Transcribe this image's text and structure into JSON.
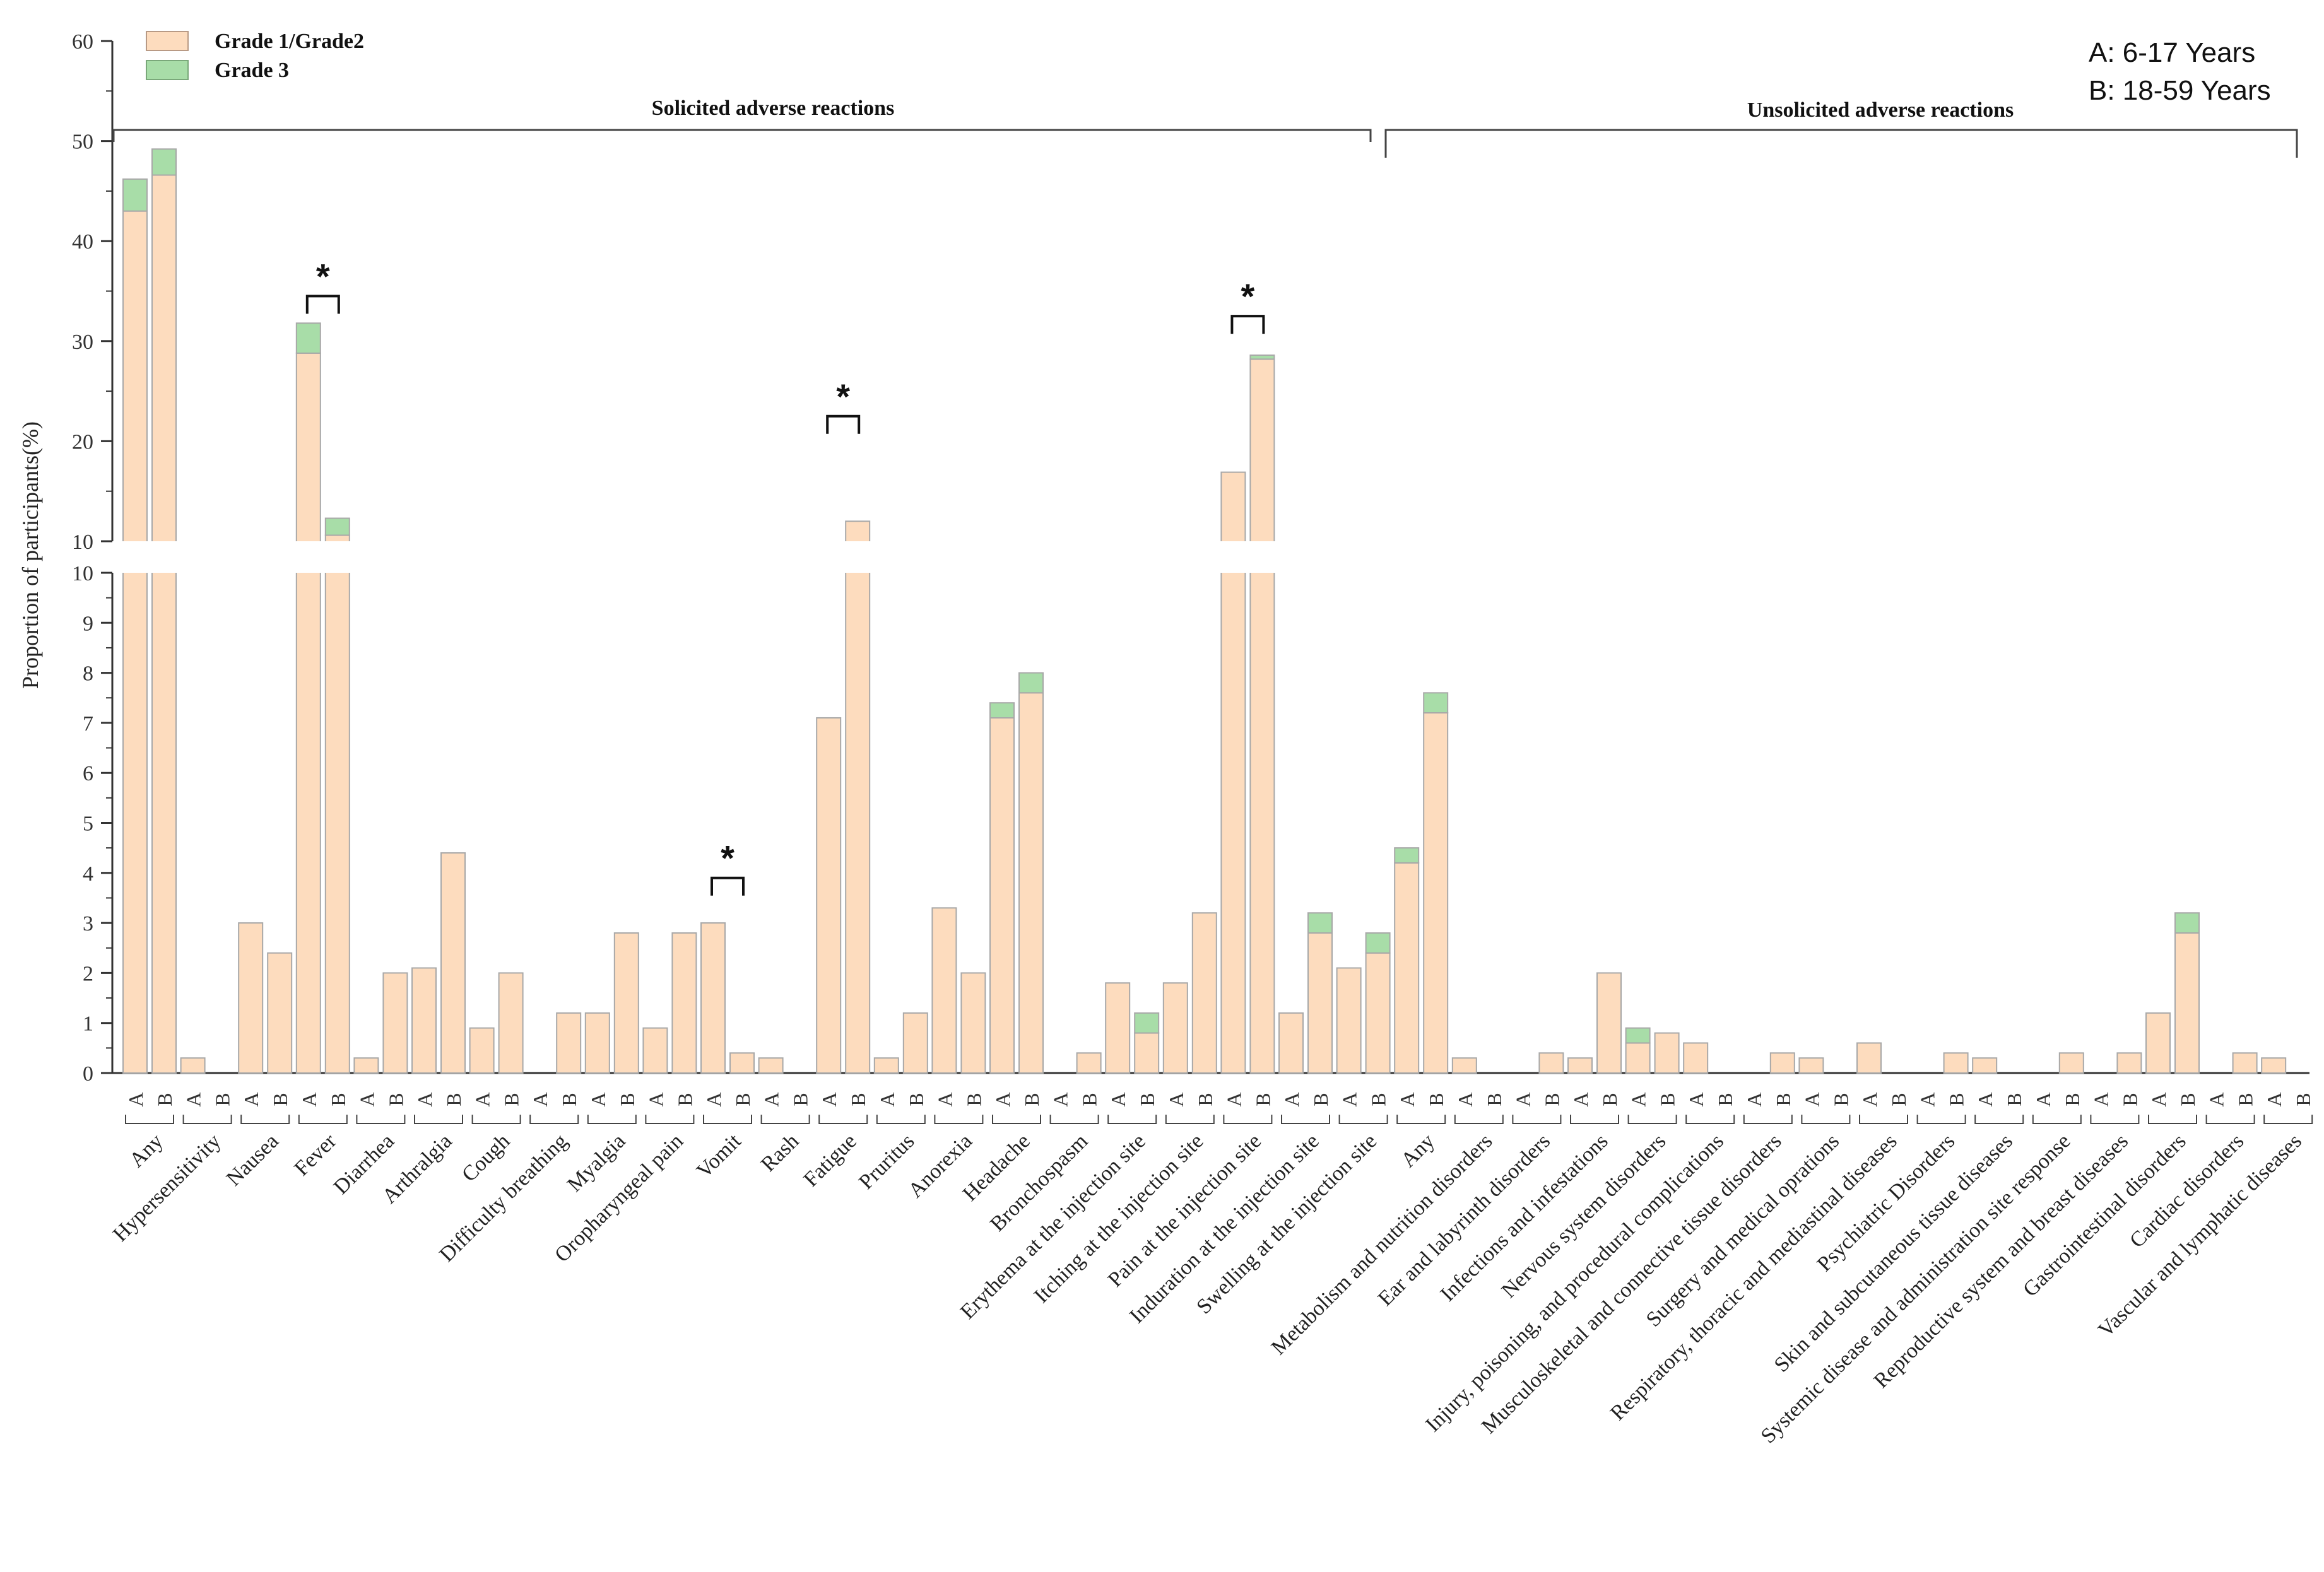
{
  "chart_data": {
    "type": "bar",
    "stacked": true,
    "broken_y_axis": true,
    "ylabel": "Proportion of participants(%)",
    "lower_ticks": [
      "0",
      "1",
      "2",
      "3",
      "4",
      "5",
      "6",
      "7",
      "8",
      "9",
      "10"
    ],
    "upper_ticks": [
      "10",
      "20",
      "30",
      "40",
      "50",
      "60"
    ],
    "lower_ylim": [
      0,
      10
    ],
    "upper_ylim": [
      10,
      60
    ],
    "legend": [
      {
        "name": "Grade 1/Grade2",
        "color": "#FDDCBE"
      },
      {
        "name": "Grade 3",
        "color": "#A8DDA8"
      }
    ],
    "age_groups": {
      "A": "A: 6-17 Years",
      "B": "B: 18-59 Years"
    },
    "groups": {
      "solicited": "Solicited adverse reactions",
      "unsolicited": "Unsolicited adverse reactions"
    },
    "significance_marker": "*",
    "categories": [
      {
        "name": "Any",
        "group": "solicited",
        "A": [
          43.0,
          3.2
        ],
        "B": [
          46.6,
          2.6
        ]
      },
      {
        "name": "Hypersensitivity",
        "group": "solicited",
        "A": [
          0.3,
          0
        ],
        "B": [
          0,
          0
        ]
      },
      {
        "name": "Nausea",
        "group": "solicited",
        "A": [
          3.0,
          0
        ],
        "B": [
          2.4,
          0
        ]
      },
      {
        "name": "Fever",
        "group": "solicited",
        "A": [
          28.8,
          3.0
        ],
        "B": [
          10.6,
          1.7
        ],
        "sig": true
      },
      {
        "name": "Diarrhea",
        "group": "solicited",
        "A": [
          0.3,
          0
        ],
        "B": [
          2.0,
          0
        ]
      },
      {
        "name": "Arthralgia",
        "group": "solicited",
        "A": [
          2.1,
          0
        ],
        "B": [
          4.4,
          0
        ]
      },
      {
        "name": "Cough",
        "group": "solicited",
        "A": [
          0.9,
          0
        ],
        "B": [
          2.0,
          0
        ]
      },
      {
        "name": "Difficulty breathing",
        "group": "solicited",
        "A": [
          0,
          0
        ],
        "B": [
          1.2,
          0
        ]
      },
      {
        "name": "Myalgia",
        "group": "solicited",
        "A": [
          1.2,
          0
        ],
        "B": [
          2.8,
          0
        ]
      },
      {
        "name": "Oropharyngeal pain",
        "group": "solicited",
        "A": [
          0.9,
          0
        ],
        "B": [
          2.8,
          0
        ]
      },
      {
        "name": "Vomit",
        "group": "solicited",
        "A": [
          3.0,
          0
        ],
        "B": [
          0.4,
          0
        ],
        "sig": true
      },
      {
        "name": "Rash",
        "group": "solicited",
        "A": [
          0.3,
          0
        ],
        "B": [
          0,
          0
        ]
      },
      {
        "name": "Fatigue",
        "group": "solicited",
        "A": [
          7.1,
          0
        ],
        "B": [
          12.0,
          0
        ],
        "sig": true
      },
      {
        "name": "Pruritus",
        "group": "solicited",
        "A": [
          0.3,
          0
        ],
        "B": [
          1.2,
          0
        ]
      },
      {
        "name": "Anorexia",
        "group": "solicited",
        "A": [
          3.3,
          0
        ],
        "B": [
          2.0,
          0
        ]
      },
      {
        "name": "Headache",
        "group": "solicited",
        "A": [
          7.1,
          0.3
        ],
        "B": [
          7.6,
          0.4
        ]
      },
      {
        "name": "Bronchospasm",
        "group": "solicited",
        "A": [
          0,
          0
        ],
        "B": [
          0.4,
          0
        ]
      },
      {
        "name": "Erythema at the injection site",
        "group": "solicited",
        "A": [
          1.8,
          0
        ],
        "B": [
          0.8,
          0.4
        ]
      },
      {
        "name": "Itching at the injection site",
        "group": "solicited",
        "A": [
          1.8,
          0
        ],
        "B": [
          3.2,
          0
        ]
      },
      {
        "name": "Pain at the injection site",
        "group": "solicited",
        "A": [
          16.9,
          0
        ],
        "B": [
          28.2,
          0.4
        ],
        "sig": true
      },
      {
        "name": "Induration at the injection site",
        "group": "solicited",
        "A": [
          1.2,
          0
        ],
        "B": [
          2.8,
          0.4
        ]
      },
      {
        "name": "Swelling at the injection site",
        "group": "solicited",
        "A": [
          2.1,
          0
        ],
        "B": [
          2.4,
          0.4
        ]
      },
      {
        "name": "Any",
        "group": "unsolicited",
        "A": [
          4.2,
          0.3
        ],
        "B": [
          7.2,
          0.4
        ]
      },
      {
        "name": "Metabolism and nutrition disorders",
        "group": "unsolicited",
        "A": [
          0.3,
          0
        ],
        "B": [
          0,
          0
        ]
      },
      {
        "name": "Ear and labyrinth disorders",
        "group": "unsolicited",
        "A": [
          0,
          0
        ],
        "B": [
          0.4,
          0
        ]
      },
      {
        "name": "Infections and infestations",
        "group": "unsolicited",
        "A": [
          0.3,
          0
        ],
        "B": [
          2.0,
          0
        ]
      },
      {
        "name": "Nervous system disorders",
        "group": "unsolicited",
        "A": [
          0.6,
          0.3
        ],
        "B": [
          0.8,
          0
        ]
      },
      {
        "name": "Injury, poisoning, and procedural complications",
        "group": "unsolicited",
        "A": [
          0.6,
          0
        ],
        "B": [
          0,
          0
        ]
      },
      {
        "name": "Musculoskeletal and connective tissue disorders",
        "group": "unsolicited",
        "A": [
          0,
          0
        ],
        "B": [
          0.4,
          0
        ]
      },
      {
        "name": "Surgery and medical oprations",
        "group": "unsolicited",
        "A": [
          0.3,
          0
        ],
        "B": [
          0,
          0
        ]
      },
      {
        "name": "Respiratory, thoracic and mediastinal diseases",
        "group": "unsolicited",
        "A": [
          0.6,
          0
        ],
        "B": [
          0,
          0
        ]
      },
      {
        "name": "Psychiatric Disorders",
        "group": "unsolicited",
        "A": [
          0,
          0
        ],
        "B": [
          0.4,
          0
        ]
      },
      {
        "name": "Skin and subcutaneous tissue diseases",
        "group": "unsolicited",
        "A": [
          0.3,
          0
        ],
        "B": [
          0,
          0
        ]
      },
      {
        "name": "Systemic disease and administration site response",
        "group": "unsolicited",
        "A": [
          0,
          0
        ],
        "B": [
          0.4,
          0
        ]
      },
      {
        "name": "Reproductive system and breast diseases",
        "group": "unsolicited",
        "A": [
          0,
          0
        ],
        "B": [
          0.4,
          0
        ]
      },
      {
        "name": "Gastrointestinal disorders",
        "group": "unsolicited",
        "A": [
          1.2,
          0
        ],
        "B": [
          2.8,
          0.4
        ]
      },
      {
        "name": "Cardiac disorders",
        "group": "unsolicited",
        "A": [
          0,
          0
        ],
        "B": [
          0.4,
          0
        ]
      },
      {
        "name": "Vascular and lymphatic diseases",
        "group": "unsolicited",
        "A": [
          0.3,
          0
        ],
        "B": [
          0,
          0
        ]
      }
    ]
  }
}
